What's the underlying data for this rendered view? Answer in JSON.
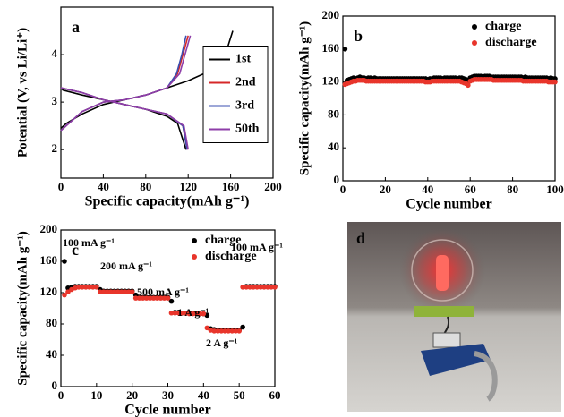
{
  "chart_data": [
    {
      "type": "line",
      "panel_label": "a",
      "x_label": "Specific capacity(mAh g⁻¹)",
      "y_label": "Potential (V, vs Li/Li⁺)",
      "xlim": [
        0,
        200
      ],
      "xticks": [
        0,
        40,
        80,
        120,
        160,
        200
      ],
      "ylim": [
        1.4,
        5.0
      ],
      "yticks": [
        2,
        3,
        4
      ],
      "legend": "center right",
      "series": [
        {
          "name": "1st",
          "color": "#000000",
          "x": [
            0,
            2,
            20,
            40,
            60,
            80,
            100,
            110,
            118,
            null,
            0,
            5,
            20,
            40,
            60,
            80,
            100,
            120,
            140,
            155,
            162
          ],
          "values": [
            3.3,
            3.25,
            3.15,
            3.05,
            2.95,
            2.85,
            2.7,
            2.55,
            2.0,
            null,
            2.45,
            2.55,
            2.75,
            2.95,
            3.05,
            3.15,
            3.3,
            3.45,
            3.65,
            4.0,
            4.5
          ]
        },
        {
          "name": "2nd",
          "color": "#d62728",
          "x": [
            0,
            20,
            40,
            60,
            80,
            100,
            115,
            119,
            null,
            0,
            20,
            40,
            60,
            80,
            100,
            110,
            115,
            120
          ],
          "values": [
            3.3,
            3.2,
            3.05,
            2.95,
            2.85,
            2.75,
            2.5,
            2.0,
            null,
            2.4,
            2.8,
            3.0,
            3.05,
            3.15,
            3.3,
            3.6,
            4.0,
            4.4
          ]
        },
        {
          "name": "3rd",
          "color": "#3b4fb0",
          "x": [
            0,
            20,
            40,
            60,
            80,
            100,
            115,
            119,
            null,
            0,
            20,
            40,
            60,
            80,
            100,
            109,
            114,
            118
          ],
          "values": [
            3.3,
            3.2,
            3.05,
            2.95,
            2.85,
            2.75,
            2.5,
            2.0,
            null,
            2.4,
            2.8,
            3.0,
            3.05,
            3.15,
            3.3,
            3.6,
            4.0,
            4.4
          ]
        },
        {
          "name": "50th",
          "color": "#8e3ea8",
          "x": [
            0,
            20,
            40,
            60,
            80,
            100,
            116,
            120,
            null,
            0,
            20,
            40,
            60,
            80,
            100,
            112,
            117,
            122
          ],
          "values": [
            3.3,
            3.2,
            3.05,
            2.95,
            2.85,
            2.75,
            2.5,
            2.0,
            null,
            2.4,
            2.8,
            3.0,
            3.05,
            3.15,
            3.3,
            3.6,
            4.0,
            4.4
          ]
        }
      ]
    },
    {
      "type": "scatter",
      "panel_label": "b",
      "x_label": "Cycle number",
      "y_label": "Specific capacity(mAh g⁻¹)",
      "xlim": [
        0,
        100
      ],
      "xticks": [
        0,
        20,
        40,
        60,
        80,
        100
      ],
      "ylim": [
        0,
        200
      ],
      "yticks": [
        0,
        40,
        80,
        120,
        160,
        200
      ],
      "legend": "upper right",
      "x": [
        1,
        2,
        3,
        4,
        5,
        6,
        7,
        8,
        9,
        10,
        11,
        12,
        13,
        14,
        15,
        16,
        17,
        18,
        19,
        20,
        21,
        22,
        23,
        24,
        25,
        26,
        27,
        28,
        29,
        30,
        31,
        32,
        33,
        34,
        35,
        36,
        37,
        38,
        39,
        40,
        41,
        42,
        43,
        44,
        45,
        46,
        47,
        48,
        49,
        50,
        51,
        52,
        53,
        54,
        55,
        56,
        57,
        58,
        59,
        60,
        61,
        62,
        63,
        64,
        65,
        66,
        67,
        68,
        69,
        70,
        71,
        72,
        73,
        74,
        75,
        76,
        77,
        78,
        79,
        80,
        81,
        82,
        83,
        84,
        85,
        86,
        87,
        88,
        89,
        90,
        91,
        92,
        93,
        94,
        95,
        96,
        97,
        98,
        99,
        100
      ],
      "series": [
        {
          "name": "charge",
          "color": "#000000",
          "values": [
            160,
            122,
            123,
            124,
            125,
            124,
            125,
            126,
            125,
            125,
            124,
            125,
            125,
            124,
            125,
            124,
            124,
            124,
            124,
            124,
            124,
            124,
            124,
            124,
            124,
            124,
            124,
            124,
            124,
            124,
            124,
            124,
            124,
            124,
            124,
            124,
            124,
            124,
            124,
            123,
            124,
            124,
            125,
            125,
            125,
            125,
            124,
            125,
            125,
            125,
            125,
            125,
            125,
            124,
            125,
            125,
            124,
            123,
            120,
            125,
            126,
            127,
            127,
            127,
            127,
            126,
            127,
            127,
            127,
            126,
            126,
            126,
            126,
            126,
            126,
            126,
            126,
            126,
            126,
            126,
            126,
            126,
            126,
            126,
            125,
            126,
            125,
            125,
            125,
            125,
            125,
            125,
            125,
            125,
            125,
            125,
            124,
            125,
            124,
            124
          ]
        },
        {
          "name": "discharge",
          "color": "#e8352b",
          "values": [
            117,
            118,
            119,
            120,
            121,
            121,
            122,
            122,
            122,
            122,
            121,
            121,
            121,
            121,
            121,
            121,
            121,
            121,
            121,
            121,
            121,
            121,
            121,
            121,
            121,
            121,
            121,
            121,
            121,
            121,
            121,
            121,
            121,
            121,
            121,
            121,
            121,
            121,
            120,
            120,
            120,
            121,
            121,
            121,
            121,
            121,
            121,
            121,
            121,
            121,
            121,
            121,
            121,
            121,
            121,
            120,
            119,
            118,
            116,
            121,
            122,
            123,
            123,
            123,
            123,
            123,
            123,
            123,
            123,
            123,
            122,
            122,
            122,
            122,
            122,
            122,
            122,
            122,
            122,
            122,
            122,
            122,
            122,
            122,
            121,
            121,
            121,
            121,
            121,
            121,
            121,
            121,
            121,
            121,
            121,
            121,
            120,
            120,
            120,
            120
          ]
        }
      ]
    },
    {
      "type": "scatter",
      "panel_label": "c",
      "x_label": "Cycle number",
      "y_label": "Specific capacity(mAh g⁻¹)",
      "xlim": [
        0,
        60
      ],
      "xticks": [
        0,
        10,
        20,
        30,
        40,
        50,
        60
      ],
      "ylim": [
        0,
        200
      ],
      "yticks": [
        0,
        40,
        80,
        120,
        160,
        200
      ],
      "legend": "upper right",
      "annotations": [
        "100 mA g⁻¹",
        "200 mA g⁻¹",
        "500 mA g⁻¹",
        "1 A g⁻¹",
        "2 A g⁻¹",
        "100 mA g⁻¹"
      ],
      "x": [
        1,
        2,
        3,
        4,
        5,
        6,
        7,
        8,
        9,
        10,
        11,
        12,
        13,
        14,
        15,
        16,
        17,
        18,
        19,
        20,
        21,
        22,
        23,
        24,
        25,
        26,
        27,
        28,
        29,
        30,
        31,
        32,
        33,
        34,
        35,
        36,
        37,
        38,
        39,
        40,
        41,
        42,
        43,
        44,
        45,
        46,
        47,
        48,
        49,
        50,
        51,
        52,
        53,
        54,
        55,
        56,
        57,
        58,
        59,
        60
      ],
      "series": [
        {
          "name": "charge",
          "color": "#000000",
          "values": [
            160,
            126,
            127,
            128,
            128,
            128,
            128,
            128,
            128,
            128,
            124,
            122,
            122,
            122,
            122,
            122,
            122,
            122,
            122,
            122,
            117,
            114,
            114,
            114,
            114,
            114,
            114,
            114,
            114,
            114,
            109,
            95,
            95,
            94,
            94,
            94,
            94,
            94,
            93,
            93,
            91,
            74,
            73,
            72,
            72,
            72,
            72,
            72,
            72,
            72,
            76,
            128,
            128,
            128,
            128,
            128,
            128,
            128,
            128,
            128
          ]
        },
        {
          "name": "discharge",
          "color": "#e8352b",
          "values": [
            117,
            121,
            124,
            126,
            127,
            127,
            127,
            127,
            127,
            127,
            121,
            121,
            121,
            121,
            121,
            121,
            121,
            121,
            121,
            121,
            113,
            113,
            113,
            113,
            113,
            113,
            113,
            113,
            113,
            113,
            94,
            94,
            94,
            94,
            94,
            93,
            93,
            93,
            93,
            93,
            75,
            72,
            71,
            71,
            71,
            71,
            71,
            71,
            71,
            71,
            127,
            127,
            127,
            127,
            127,
            127,
            127,
            127,
            127,
            127
          ]
        }
      ]
    }
  ],
  "photo": {
    "label": "d"
  }
}
